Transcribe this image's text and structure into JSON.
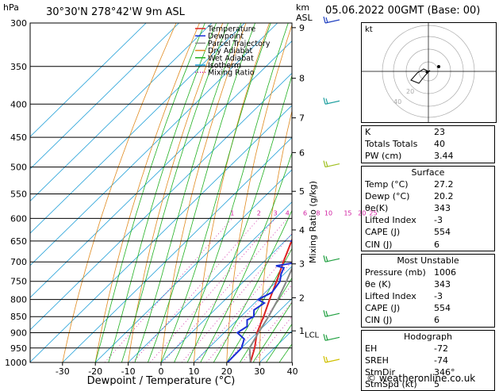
{
  "header": {
    "hpa_unit": "hPa",
    "location": "30°30'N  278°42'W  9m ASL",
    "km_unit": "km",
    "asl_unit": "ASL",
    "datetime": "05.06.2022  00GMT  (Base: 00)"
  },
  "colors": {
    "temperature": "#dd2222",
    "dewpoint": "#1a2fd6",
    "parcel": "#888888",
    "dry_adiabat": "#e08a1e",
    "wet_adiabat": "#20b020",
    "isotherm": "#22a0d8",
    "mixing_ratio": "#d01ca0"
  },
  "legend": [
    "Temperature",
    "Dewpoint",
    "Parcel Trajectory",
    "Dry Adiabat",
    "Wet Adiabat",
    "Isotherm",
    "Mixing Ratio"
  ],
  "chart_data": {
    "type": "line",
    "title": "30°30'N  278°42'W  9m ASL",
    "xlabel": "Dewpoint / Temperature (°C)",
    "ylabel": "hPa",
    "y2label": "Mixing Ratio (g/kg)",
    "xlim": [
      -35,
      40
    ],
    "ylim": [
      1000,
      300
    ],
    "pressure_levels": [
      300,
      350,
      400,
      450,
      500,
      550,
      600,
      650,
      700,
      750,
      800,
      850,
      900,
      950,
      1000
    ],
    "x_ticks": [
      -30,
      -20,
      -10,
      0,
      10,
      20,
      30,
      40
    ],
    "km_ticks": [
      {
        "km": "1",
        "p": 894
      },
      {
        "km": "2",
        "p": 795
      },
      {
        "km": "3",
        "p": 705
      },
      {
        "km": "4",
        "p": 625
      },
      {
        "km": "5",
        "p": 545
      },
      {
        "km": "6",
        "p": 475
      },
      {
        "km": "7",
        "p": 420
      },
      {
        "km": "8",
        "p": 365
      },
      {
        "km": "9",
        "p": 305
      }
    ],
    "lcl_label": "LCL",
    "lcl_pressure": 905,
    "mixing_ratio_labels": [
      "1",
      "2",
      "3",
      "4",
      "6",
      "8",
      "10",
      "15",
      "20",
      "25"
    ],
    "mixing_ratio_values": [
      1,
      2,
      3,
      4,
      6,
      8,
      10,
      15,
      20,
      25
    ],
    "series": [
      {
        "name": "Temperature",
        "points": [
          [
            1000,
            27.2
          ],
          [
            950,
            24
          ],
          [
            900,
            20
          ],
          [
            850,
            17
          ],
          [
            800,
            13.5
          ],
          [
            750,
            10
          ],
          [
            700,
            6
          ],
          [
            650,
            2
          ],
          [
            600,
            -2.5
          ],
          [
            550,
            -6.5
          ],
          [
            500,
            -11
          ],
          [
            450,
            -16
          ],
          [
            400,
            -22
          ],
          [
            350,
            -30
          ],
          [
            320,
            -35
          ],
          [
            300,
            -38
          ]
        ]
      },
      {
        "name": "Dewpoint",
        "points": [
          [
            1000,
            20.2
          ],
          [
            950,
            20
          ],
          [
            920,
            18
          ],
          [
            900,
            14
          ],
          [
            880,
            15
          ],
          [
            860,
            13
          ],
          [
            850,
            14
          ],
          [
            830,
            12
          ],
          [
            810,
            13
          ],
          [
            800,
            10
          ],
          [
            780,
            12
          ],
          [
            750,
            11
          ],
          [
            730,
            9
          ],
          [
            715,
            8
          ],
          [
            710,
            5
          ],
          [
            705,
            8
          ],
          [
            700,
            11
          ],
          [
            680,
            12
          ],
          [
            660,
            11
          ],
          [
            650,
            2
          ],
          [
            630,
            5
          ],
          [
            610,
            4
          ],
          [
            600,
            7
          ],
          [
            580,
            3
          ],
          [
            560,
            4
          ],
          [
            540,
            1
          ],
          [
            520,
            2
          ],
          [
            500,
            1
          ],
          [
            480,
            -22
          ],
          [
            450,
            -22
          ],
          [
            430,
            -19
          ],
          [
            415,
            -13
          ],
          [
            400,
            -13
          ],
          [
            390,
            -11
          ],
          [
            370,
            -15
          ],
          [
            350,
            -24
          ],
          [
            330,
            -15
          ],
          [
            320,
            -22
          ],
          [
            310,
            -27
          ],
          [
            300,
            -30
          ]
        ]
      },
      {
        "name": "Parcel Trajectory",
        "points": [
          [
            1000,
            27.2
          ],
          [
            950,
            22.5
          ],
          [
            905,
            20.6
          ],
          [
            850,
            18.5
          ],
          [
            800,
            16
          ],
          [
            750,
            13
          ],
          [
            700,
            9.5
          ],
          [
            650,
            5.5
          ],
          [
            600,
            1.5
          ],
          [
            550,
            -3
          ],
          [
            500,
            -8
          ],
          [
            450,
            -13.5
          ],
          [
            400,
            -19.5
          ],
          [
            350,
            -27
          ],
          [
            300,
            -35
          ]
        ]
      }
    ]
  },
  "hodograph": {
    "label": "kt",
    "rings": [
      "20",
      "40"
    ]
  },
  "indices": [
    {
      "label": "K",
      "value": "23"
    },
    {
      "label": "Totals Totals",
      "value": "40"
    },
    {
      "label": "PW (cm)",
      "value": "3.44"
    }
  ],
  "surface": {
    "title": "Surface",
    "rows": [
      {
        "label": "Temp (°C)",
        "value": "27.2"
      },
      {
        "label": "Dewp (°C)",
        "value": "20.2"
      },
      {
        "label": "θe(K)",
        "value": "343"
      },
      {
        "label": "Lifted Index",
        "value": "-3"
      },
      {
        "label": "CAPE (J)",
        "value": "554"
      },
      {
        "label": "CIN (J)",
        "value": "6"
      }
    ]
  },
  "most_unstable": {
    "title": "Most Unstable",
    "rows": [
      {
        "label": "Pressure (mb)",
        "value": "1006"
      },
      {
        "label": "θe (K)",
        "value": "343"
      },
      {
        "label": "Lifted Index",
        "value": "-3"
      },
      {
        "label": "CAPE (J)",
        "value": "554"
      },
      {
        "label": "CIN (J)",
        "value": "6"
      }
    ]
  },
  "hodograph_params": {
    "title": "Hodograph",
    "rows": [
      {
        "label": "EH",
        "value": "-72"
      },
      {
        "label": "SREH",
        "value": "-74"
      },
      {
        "label": "StmDir",
        "value": "346°"
      },
      {
        "label": "StmSpd (kt)",
        "value": "5"
      }
    ]
  },
  "footer": "© weatheronline.co.uk"
}
